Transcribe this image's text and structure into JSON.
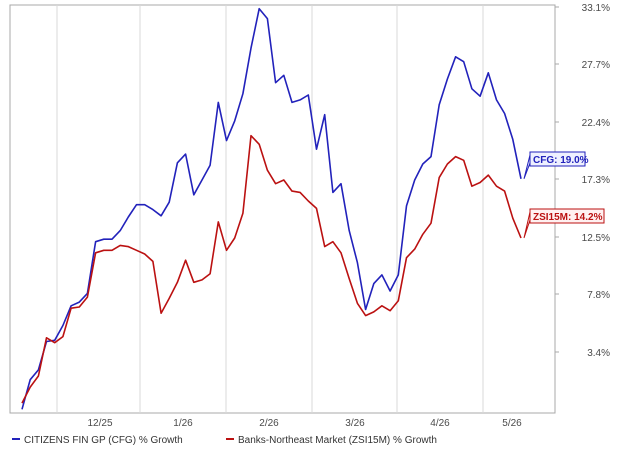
{
  "chart_data": {
    "type": "line",
    "x_ticks": [
      "12/25",
      "1/26",
      "2/26",
      "3/26",
      "4/26",
      "5/26"
    ],
    "ylim": [
      0,
      33.1
    ],
    "y_ticks": [
      "33.1%",
      "27.7%",
      "22.4%",
      "17.3%",
      "12.5%",
      "7.8%",
      "3.4%"
    ],
    "grid": "vertical",
    "legend_position": "bottom-left",
    "series": [
      {
        "name": "CITIZENS FIN GP (CFG) % Growth",
        "color": "#2222bb",
        "end_label": "CFG: 19.0%",
        "values": [
          0.3,
          2.7,
          3.5,
          5.8,
          5.9,
          7.1,
          8.7,
          9.0,
          9.7,
          13.9,
          14.1,
          14.1,
          14.8,
          15.9,
          16.9,
          16.9,
          16.5,
          16.0,
          17.1,
          20.3,
          21.0,
          17.7,
          18.9,
          20.1,
          25.2,
          22.1,
          23.7,
          25.9,
          29.6,
          32.8,
          32.0,
          26.8,
          27.4,
          25.2,
          25.4,
          25.8,
          21.4,
          24.2,
          17.9,
          18.6,
          14.8,
          12.2,
          8.4,
          10.5,
          11.2,
          9.9,
          11.2,
          16.8,
          18.9,
          20.2,
          20.8,
          25.0,
          27.1,
          28.9,
          28.5,
          26.3,
          25.7,
          27.6,
          25.4,
          24.3,
          22.2,
          19.0
        ]
      },
      {
        "name": "Banks-Northeast Market (ZSI15M) % Growth",
        "color": "#bb1111",
        "end_label": "ZSI15M: 14.2%",
        "values": [
          0.8,
          2.1,
          3.0,
          6.1,
          5.7,
          6.2,
          8.5,
          8.6,
          9.4,
          13.0,
          13.2,
          13.2,
          13.6,
          13.5,
          13.2,
          12.9,
          12.3,
          8.1,
          9.3,
          10.6,
          12.4,
          10.6,
          10.8,
          11.3,
          15.5,
          13.2,
          14.2,
          16.2,
          22.5,
          21.8,
          19.7,
          18.6,
          18.9,
          18.0,
          17.9,
          17.2,
          16.6,
          13.5,
          13.9,
          13.0,
          10.9,
          8.9,
          7.9,
          8.2,
          8.7,
          8.3,
          9.1,
          12.6,
          13.3,
          14.5,
          15.4,
          19.1,
          20.2,
          20.8,
          20.5,
          18.4,
          18.7,
          19.3,
          18.4,
          18.0,
          15.8,
          14.2
        ]
      }
    ]
  }
}
